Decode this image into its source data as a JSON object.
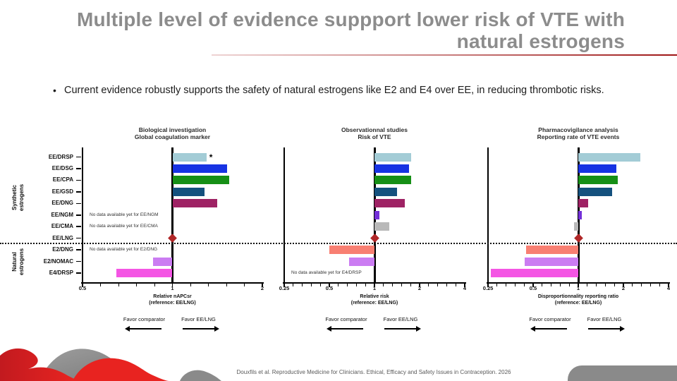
{
  "slide": {
    "title_line1": "Multiple level of evidence suppport lower risk of VTE with",
    "title_line2": "natural estrogens",
    "bullet_marker": "•",
    "bullet": "Current evidence robustly supports the safety of natural estrogens like E2 and E4 over EE, in reducing thrombotic risks.",
    "footer": "Douxfils et al. Reproductive Medicine for Clinicians. Ethical, Efficacy and Safety Issues in Contraception. 2026",
    "title_color": "#8c8c8c",
    "accent_red": "#9e1414"
  },
  "chart_data": {
    "type": "bar",
    "orientation": "horizontal-forest",
    "x_scale": "log2",
    "grid": false,
    "rows": [
      {
        "label": "EE/DRSP",
        "group": "Synthetic estrogens",
        "color": "#a3ccd6"
      },
      {
        "label": "EE/DSG",
        "group": "Synthetic estrogens",
        "color": "#1733e3"
      },
      {
        "label": "EE/CPA",
        "group": "Synthetic estrogens",
        "color": "#168f16"
      },
      {
        "label": "EE/GSD",
        "group": "Synthetic estrogens",
        "color": "#14517e"
      },
      {
        "label": "EE/DNG",
        "group": "Synthetic estrogens",
        "color": "#9e2264"
      },
      {
        "label": "EE/NGM",
        "group": "Synthetic estrogens",
        "color": "#7330d8"
      },
      {
        "label": "EE/CMA",
        "group": "Synthetic estrogens",
        "color": "#b9b9b9"
      },
      {
        "label": "EE/LNG",
        "group": "Synthetic estrogens",
        "color": "#b02728",
        "reference": true
      },
      {
        "label": "E2/DNG",
        "group": "Natural estrogens",
        "color": "#f87f72"
      },
      {
        "label": "E2/NOMAC",
        "group": "Natural estrogens",
        "color": "#cb7cf2"
      },
      {
        "label": "E4/DRSP",
        "group": "Natural estrogens",
        "color": "#f455e4"
      }
    ],
    "groups": [
      {
        "label_lines": [
          "Synthetic",
          "estrogens"
        ],
        "row_start": 0,
        "row_end": 7
      },
      {
        "label_lines": [
          "Natural",
          "estrogens"
        ],
        "row_start": 8,
        "row_end": 10
      }
    ],
    "reference_row": "EE/LNG",
    "reference_value": 1,
    "reference_marker": "red-diamond",
    "reference_marker_color": "#b02728",
    "favor_left": "Favor comparator",
    "favor_right": "Favor EE/LNG",
    "charts": [
      {
        "title_lines": [
          "Biological investigation",
          "Global coagulation marker"
        ],
        "xlabel_lines": [
          "Relative nAPCsr",
          "(reference: EE/LNG)"
        ],
        "xmin": 0.5,
        "xmax": 2,
        "tick_values": [
          0.5,
          1,
          2
        ],
        "tick_labels": [
          "0.5",
          "1",
          "2"
        ],
        "values": [
          1.3,
          1.52,
          1.55,
          1.28,
          1.41,
          null,
          null,
          null,
          null,
          0.86,
          0.65
        ],
        "notes": {
          "EE/NGM": "No data available yet for EE/NGM",
          "EE/CMA": "No data available yet for EE/CMA",
          "E2/DNG": "No data available yet for E2/DNG"
        },
        "star_row": "EE/DRSP",
        "star": "*"
      },
      {
        "title_lines": [
          "Observationnal studies",
          "Risk of VTE"
        ],
        "xlabel_lines": [
          "Relative risk",
          "(reference: EE/LNG)"
        ],
        "xmin": 0.25,
        "xmax": 4,
        "tick_values": [
          0.25,
          0.5,
          1,
          2,
          4
        ],
        "tick_labels": [
          "0.25",
          "0.5",
          "1",
          "2",
          "4"
        ],
        "values": [
          1.75,
          1.7,
          1.76,
          1.41,
          1.59,
          1.08,
          1.25,
          null,
          0.5,
          0.68,
          null
        ],
        "notes": {
          "E4/DRSP": "No data available yet for E4/DRSP"
        }
      },
      {
        "title_lines": [
          "Pharmacovigilance analysis",
          "Reporting rate of VTE events"
        ],
        "xlabel_lines": [
          "Disproportionnality reporting ratio",
          "(reference: EE/LNG)"
        ],
        "xmin": 0.25,
        "xmax": 4,
        "tick_values": [
          0.25,
          0.5,
          1,
          2,
          4
        ],
        "tick_labels": [
          "0.25",
          "0.5",
          "1",
          "2",
          "4"
        ],
        "values": [
          2.6,
          1.8,
          1.84,
          1.69,
          1.17,
          1.06,
          0.94,
          null,
          0.45,
          0.44,
          0.26
        ],
        "notes": {}
      }
    ]
  }
}
